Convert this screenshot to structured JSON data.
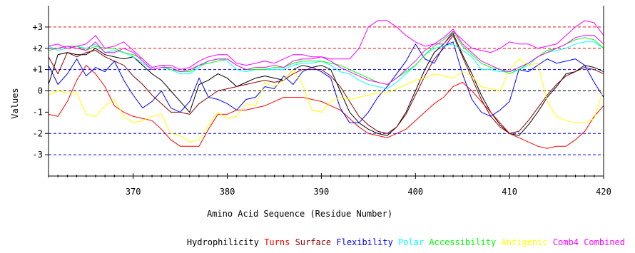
{
  "chart_data": {
    "type": "line",
    "title": "",
    "xlabel": "Amino Acid Sequence (Residue Number)",
    "ylabel": "Values",
    "xlim": [
      361,
      420
    ],
    "ylim": [
      -4,
      4
    ],
    "x_ticks": [
      370,
      380,
      390,
      400,
      410,
      420
    ],
    "y_ticks": [
      {
        "value": 3,
        "label": "+3"
      },
      {
        "value": 2,
        "label": "+2"
      },
      {
        "value": 1,
        "label": "+1"
      },
      {
        "value": 0,
        "label": "0"
      },
      {
        "value": -1,
        "label": "-1"
      },
      {
        "value": -2,
        "label": "-2"
      },
      {
        "value": -3,
        "label": "-3"
      }
    ],
    "reference_lines": [
      {
        "y": 3,
        "color": "#ff0000"
      },
      {
        "y": 2,
        "color": "#ff0000"
      },
      {
        "y": 1,
        "color": "#0000ff"
      },
      {
        "y": 0,
        "color": "#000000"
      },
      {
        "y": -2,
        "color": "#0000ff"
      },
      {
        "y": -3,
        "color": "#0000ff"
      }
    ],
    "x": [
      361,
      362,
      363,
      364,
      365,
      366,
      367,
      368,
      369,
      370,
      371,
      372,
      373,
      374,
      375,
      376,
      377,
      378,
      379,
      380,
      381,
      382,
      383,
      384,
      385,
      386,
      387,
      388,
      389,
      390,
      391,
      392,
      393,
      394,
      395,
      396,
      397,
      398,
      399,
      400,
      401,
      402,
      403,
      404,
      405,
      406,
      407,
      408,
      409,
      410,
      411,
      412,
      413,
      414,
      415,
      416,
      417,
      418,
      419,
      420
    ],
    "series": [
      {
        "name": "Hydrophilicity",
        "color": "#000000",
        "values": [
          0.3,
          1.7,
          1.8,
          1.7,
          1.7,
          2.0,
          1.7,
          1.6,
          1.5,
          1.6,
          1.2,
          0.8,
          0.5,
          0.0,
          -0.5,
          -1.0,
          0.3,
          0.5,
          0.8,
          0.6,
          0.2,
          0.4,
          0.6,
          0.7,
          0.6,
          0.5,
          1.0,
          1.2,
          1.1,
          1.2,
          1.0,
          0.0,
          -1.0,
          -1.5,
          -1.8,
          -2.0,
          -2.1,
          -1.7,
          -1.0,
          0.0,
          1.0,
          1.8,
          2.2,
          2.7,
          1.7,
          0.8,
          -0.2,
          -1.0,
          -1.6,
          -2.0,
          -2.1,
          -1.6,
          -1.0,
          -0.3,
          0.2,
          0.8,
          0.9,
          1.2,
          1.1,
          0.9
        ]
      },
      {
        "name": "Turns",
        "color": "#ff0000",
        "values": [
          -1.1,
          -1.2,
          -0.5,
          0.5,
          1.2,
          0.8,
          0.2,
          -0.7,
          -1.0,
          -1.2,
          -1.3,
          -1.4,
          -1.8,
          -2.3,
          -2.6,
          -2.6,
          -2.6,
          -1.8,
          -1.1,
          -1.1,
          -0.9,
          -0.9,
          -0.8,
          -0.7,
          -0.5,
          -0.3,
          -0.3,
          -0.3,
          -0.4,
          -0.5,
          -0.7,
          -0.9,
          -1.3,
          -1.7,
          -2.0,
          -2.1,
          -2.2,
          -2.0,
          -1.8,
          -1.4,
          -1.0,
          -0.6,
          -0.3,
          0.2,
          0.4,
          0.0,
          -0.5,
          -1.0,
          -1.5,
          -2.0,
          -2.2,
          -2.4,
          -2.6,
          -2.7,
          -2.6,
          -2.6,
          -2.3,
          -1.9,
          -1.2,
          -0.7
        ]
      },
      {
        "name": "Surface",
        "color": "#8b0000",
        "values": [
          1.6,
          0.8,
          1.8,
          1.6,
          1.8,
          1.9,
          1.6,
          1.4,
          1.2,
          0.7,
          0.3,
          -0.2,
          -0.6,
          -1.0,
          -1.0,
          -1.1,
          -0.6,
          -0.3,
          0.0,
          0.1,
          0.2,
          0.3,
          0.4,
          0.5,
          0.4,
          0.5,
          0.8,
          1.0,
          1.0,
          1.0,
          0.7,
          0.2,
          -0.5,
          -1.2,
          -1.6,
          -1.9,
          -2.0,
          -1.7,
          -1.1,
          -0.2,
          0.7,
          1.5,
          2.0,
          2.6,
          1.6,
          0.6,
          -0.4,
          -1.2,
          -1.7,
          -2.0,
          -1.9,
          -1.4,
          -0.8,
          -0.2,
          0.3,
          0.7,
          0.9,
          1.1,
          1.0,
          0.8
        ]
      },
      {
        "name": "Flexibility",
        "color": "#0000ff",
        "values": [
          1.2,
          0.3,
          0.8,
          1.5,
          0.7,
          1.1,
          0.9,
          1.4,
          0.5,
          -0.2,
          -0.8,
          -0.5,
          0.0,
          -0.8,
          -1.0,
          -0.5,
          0.6,
          -0.3,
          -0.4,
          -0.6,
          -0.9,
          -0.4,
          -0.3,
          0.2,
          0.1,
          0.7,
          0.3,
          0.9,
          1.1,
          0.9,
          0.6,
          -0.8,
          -1.5,
          -1.5,
          -1.0,
          -0.3,
          0.2,
          0.8,
          1.4,
          2.2,
          1.5,
          1.3,
          2.1,
          2.3,
          0.8,
          -0.4,
          -1.0,
          -1.2,
          -0.9,
          -0.5,
          1.0,
          0.9,
          1.2,
          1.5,
          1.3,
          1.4,
          1.5,
          1.2,
          0.4,
          -0.3
        ]
      },
      {
        "name": "Polar",
        "color": "#00ffff",
        "values": [
          2.1,
          1.9,
          2.0,
          2.1,
          2.0,
          2.2,
          1.8,
          1.9,
          1.8,
          1.6,
          1.3,
          1.0,
          1.1,
          1.0,
          0.8,
          0.8,
          1.1,
          1.4,
          1.5,
          1.4,
          1.0,
          0.9,
          1.0,
          1.0,
          1.0,
          1.0,
          1.2,
          1.3,
          1.3,
          1.4,
          1.2,
          0.9,
          0.8,
          0.5,
          0.3,
          0.2,
          0.1,
          0.4,
          0.8,
          1.2,
          1.7,
          2.0,
          2.1,
          2.2,
          1.9,
          1.6,
          1.0,
          1.0,
          0.9,
          0.9,
          1.0,
          1.2,
          1.6,
          1.8,
          1.9,
          2.0,
          2.2,
          2.3,
          2.3,
          2.0
        ]
      },
      {
        "name": "Accessibility",
        "color": "#00ff00",
        "values": [
          1.9,
          2.0,
          2.1,
          2.1,
          1.9,
          2.1,
          2.0,
          2.0,
          1.8,
          1.7,
          1.5,
          1.1,
          1.2,
          1.0,
          0.9,
          0.9,
          1.2,
          1.3,
          1.4,
          1.5,
          1.2,
          1.0,
          1.0,
          1.0,
          1.1,
          1.1,
          1.3,
          1.4,
          1.4,
          1.4,
          1.3,
          1.2,
          1.0,
          0.8,
          0.6,
          0.4,
          0.3,
          0.6,
          0.9,
          1.2,
          1.7,
          2.1,
          2.4,
          2.8,
          2.1,
          1.7,
          1.3,
          1.1,
          1.0,
          0.8,
          1.0,
          1.3,
          1.6,
          1.9,
          2.0,
          2.2,
          2.4,
          2.5,
          2.4,
          2.0
        ]
      },
      {
        "name": "Antigenic",
        "color": "#ffff00",
        "values": [
          -0.2,
          0.0,
          -0.1,
          -0.1,
          -1.1,
          -1.2,
          -0.7,
          -0.4,
          -1.2,
          -1.5,
          -1.4,
          -1.2,
          -1.1,
          -2.0,
          -2.1,
          -2.4,
          -2.3,
          -1.6,
          -1.0,
          -1.3,
          -1.2,
          -0.6,
          -0.7,
          0.4,
          0.2,
          0.5,
          1.0,
          0.3,
          -0.9,
          -1.0,
          -0.5,
          -0.3,
          -0.4,
          -0.3,
          -0.2,
          -0.1,
          -0.1,
          0.1,
          0.3,
          0.5,
          0.6,
          0.8,
          0.7,
          0.6,
          0.9,
          0.7,
          0.2,
          0.1,
          0.0,
          1.0,
          1.5,
          1.2,
          1.3,
          -0.5,
          -1.2,
          -1.4,
          -1.5,
          -1.5,
          -1.3,
          0.1
        ]
      },
      {
        "name": "Comb4",
        "color": "#ff00ff",
        "values": [
          2.0,
          2.0,
          2.1,
          2.0,
          1.9,
          2.3,
          1.8,
          1.8,
          2.0,
          1.8,
          1.4,
          1.0,
          1.1,
          1.1,
          0.9,
          1.0,
          1.2,
          1.4,
          1.5,
          1.5,
          1.2,
          1.0,
          1.1,
          1.1,
          1.2,
          1.1,
          1.4,
          1.5,
          1.5,
          1.6,
          1.4,
          1.1,
          0.9,
          0.7,
          0.5,
          0.4,
          0.3,
          0.6,
          1.0,
          1.4,
          1.9,
          2.2,
          2.5,
          2.9,
          2.2,
          1.8,
          1.4,
          1.2,
          1.0,
          0.9,
          1.1,
          1.3,
          1.6,
          1.8,
          2.0,
          2.2,
          2.5,
          2.6,
          2.6,
          2.2
        ]
      },
      {
        "name": "Combined",
        "color": "#ff00ff",
        "values": [
          2.1,
          2.2,
          2.0,
          2.1,
          2.2,
          2.6,
          2.0,
          2.1,
          2.3,
          1.9,
          1.5,
          1.1,
          1.2,
          1.2,
          1.0,
          1.1,
          1.4,
          1.6,
          1.7,
          1.7,
          1.3,
          1.2,
          1.3,
          1.4,
          1.3,
          1.5,
          1.7,
          1.7,
          1.6,
          1.6,
          1.5,
          1.5,
          1.5,
          2.0,
          3.0,
          3.3,
          3.3,
          3.0,
          2.6,
          2.3,
          2.1,
          2.2,
          2.2,
          2.8,
          2.4,
          2.0,
          1.9,
          1.8,
          2.0,
          2.3,
          2.2,
          2.2,
          2.0,
          2.1,
          2.2,
          2.6,
          3.0,
          3.3,
          3.2,
          2.6
        ]
      }
    ]
  }
}
